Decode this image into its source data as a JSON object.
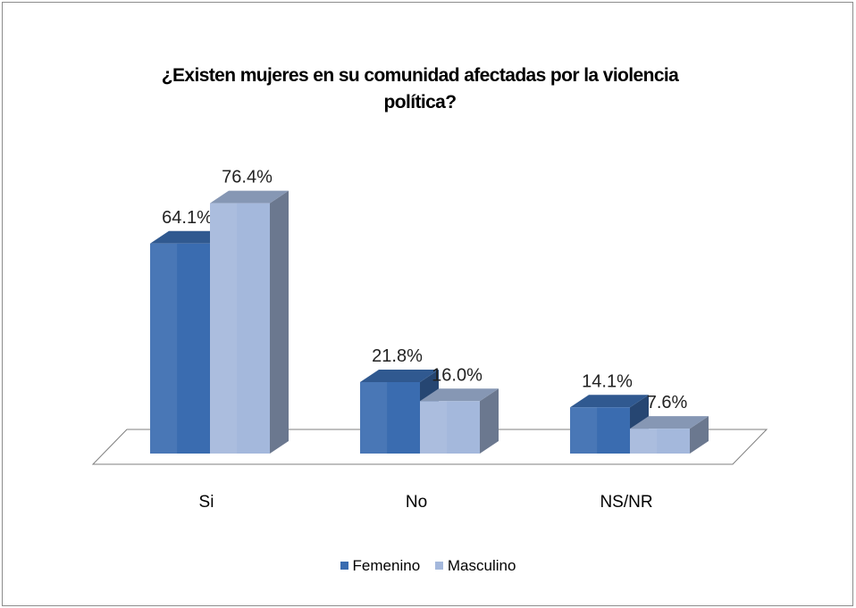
{
  "chart_data": {
    "type": "bar",
    "title_lines": [
      "¿Existen mujeres en su comunidad afectadas por la violencia",
      "política?"
    ],
    "categories": [
      "Si",
      "No",
      "NS/NR"
    ],
    "series": [
      {
        "name": "Femenino",
        "values": [
          64.1,
          21.8,
          14.1
        ],
        "labels": [
          "64.1%",
          "21.8%",
          "14.1%"
        ],
        "color": "#3a6cb0"
      },
      {
        "name": "Masculino",
        "values": [
          76.4,
          16.0,
          7.6
        ],
        "labels": [
          "76.4%",
          "16.0%",
          "7.6%"
        ],
        "color": "#a4b8dc"
      }
    ],
    "ylim": [
      0,
      100
    ],
    "grid": false,
    "legend_position": "bottom",
    "three_d": true
  }
}
